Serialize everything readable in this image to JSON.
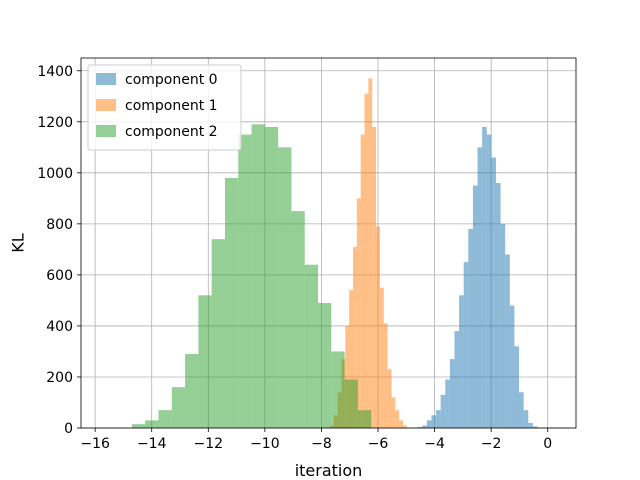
{
  "chart_data": {
    "type": "bar",
    "subtype": "histogram",
    "title": "",
    "xlabel": "iteration",
    "ylabel": "KL",
    "xlim": [
      -16.5,
      1.0
    ],
    "ylim": [
      0,
      1450
    ],
    "grid": true,
    "legend_position": "top-left",
    "x_ticks": [
      -16,
      -14,
      -12,
      -10,
      -8,
      -6,
      -4,
      -2,
      0
    ],
    "y_ticks": [
      0,
      200,
      400,
      600,
      800,
      1000,
      1200,
      1400
    ],
    "series": [
      {
        "name": "component 0",
        "color": "#1f77b4",
        "bin_start": -4.6,
        "bin_width": 0.163,
        "counts": [
          4,
          10,
          30,
          50,
          70,
          130,
          190,
          270,
          380,
          520,
          650,
          780,
          950,
          1100,
          1180,
          1150,
          1060,
          960,
          800,
          680,
          480,
          320,
          140,
          70,
          20,
          6
        ]
      },
      {
        "name": "component 1",
        "color": "#ff7f0e",
        "bin_start": -7.7,
        "bin_width": 0.136,
        "counts": [
          10,
          50,
          140,
          270,
          400,
          540,
          710,
          900,
          1150,
          1310,
          1370,
          1180,
          790,
          550,
          410,
          230,
          120,
          70,
          30,
          10
        ]
      },
      {
        "name": "component 2",
        "color": "#2ca02c",
        "bin_start": -14.7,
        "bin_width": 0.47,
        "counts": [
          15,
          30,
          70,
          160,
          290,
          520,
          740,
          980,
          1150,
          1190,
          1180,
          1100,
          850,
          640,
          490,
          300,
          190,
          70
        ]
      }
    ]
  }
}
